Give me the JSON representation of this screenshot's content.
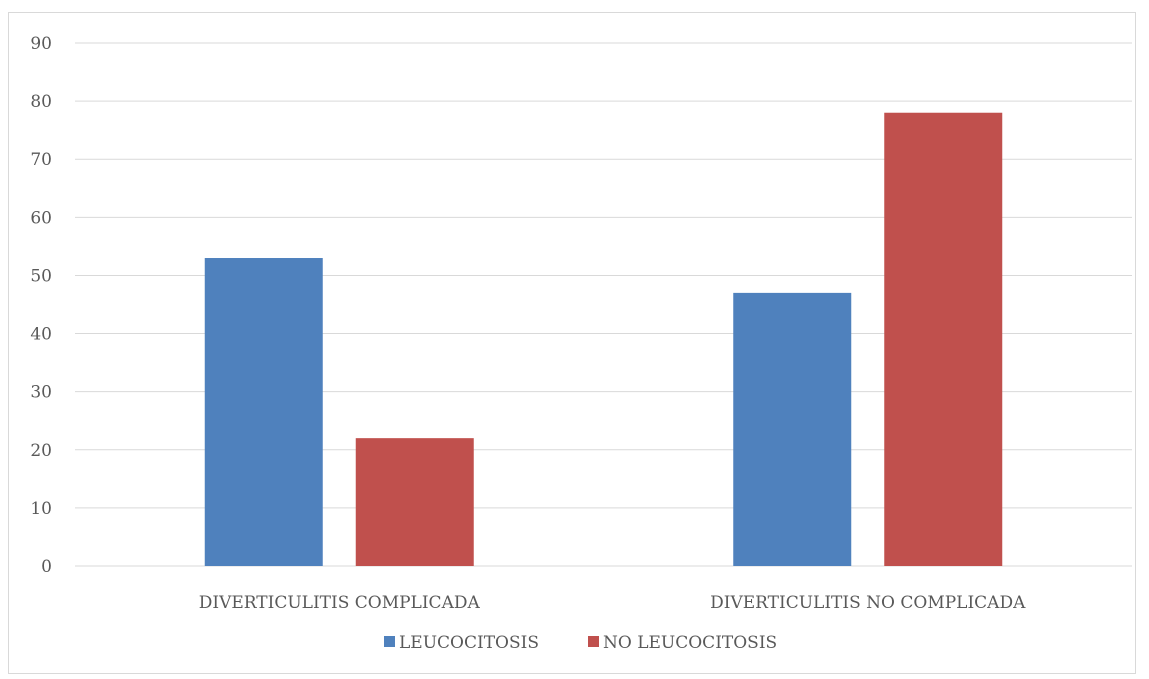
{
  "chart_data": {
    "type": "bar",
    "categories": [
      "DIVERTICULITIS COMPLICADA",
      "DIVERTICULITIS NO COMPLICADA"
    ],
    "series": [
      {
        "name": "LEUCOCITOSIS",
        "values": [
          53,
          47
        ],
        "color": "#4f81bd"
      },
      {
        "name": "NO LEUCOCITOSIS",
        "values": [
          22,
          78
        ],
        "color": "#c0504d"
      }
    ],
    "ylim": [
      0,
      90
    ],
    "yticks": [
      0,
      10,
      20,
      30,
      40,
      50,
      60,
      70,
      80,
      90
    ],
    "grid": true,
    "legend_position": "bottom",
    "xlabel": "",
    "ylabel": "",
    "title": ""
  }
}
